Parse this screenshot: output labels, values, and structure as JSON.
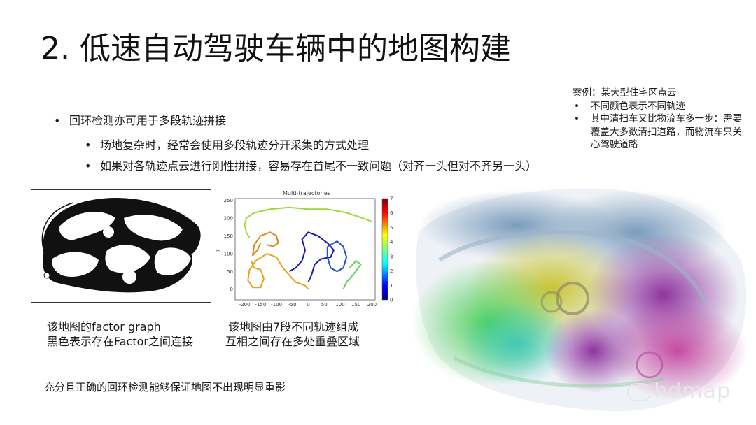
{
  "slide": {
    "title": "2. 低速自动驾驶车辆中的地图构建",
    "bullets": {
      "main": "回环检测亦可用于多段轨迹拼接",
      "sub1": "场地复杂时，经常会使用多段轨迹分开采集的方式处理",
      "sub2": "如果对各轨迹点云进行刚性拼接，容易存在首尾不一致问题（对齐一头但对不齐另一头）"
    },
    "case_note": {
      "title": "案例：某大型住宅区点云",
      "items": [
        "不同颜色表示不同轨迹",
        "其中清扫车又比物流车多一步：需要覆盖大多数清扫道路，而物流车只关心驾驶道路"
      ],
      "bullet": "•"
    },
    "captions": {
      "factor_line1": "该地图的factor graph",
      "factor_line2": "黑色表示存在Factor之间连接",
      "traj_line1": "该地图由7段不同轨迹组成",
      "traj_line2": "互相之间存在多处重叠区域",
      "conclusion": "充分且正确的回环检测能够保证地图不出现明显重影"
    },
    "watermark": "hdmap",
    "bullet_main": "•",
    "bullet_sub": "•"
  },
  "chart_data": {
    "type": "line",
    "title": "Multi-trajectories",
    "xlabel": "",
    "ylabel": "y",
    "xlim": [
      -230,
      210
    ],
    "ylim": [
      -30,
      255
    ],
    "xticks": [
      -200,
      -150,
      -100,
      -50,
      0,
      50,
      100,
      150,
      200
    ],
    "yticks": [
      0,
      50,
      100,
      150,
      200,
      250
    ],
    "colorbar": {
      "min": 0,
      "max": 7,
      "ticks": [
        0,
        1,
        2,
        3,
        4,
        5,
        6,
        7
      ],
      "colormap": "jet"
    },
    "series": [
      {
        "color": "#1b1ba8",
        "points": [
          [
            -60,
            50
          ],
          [
            -40,
            60
          ],
          [
            -20,
            80
          ],
          [
            -10,
            110
          ],
          [
            -20,
            140
          ],
          [
            0,
            160
          ],
          [
            30,
            150
          ],
          [
            60,
            130
          ],
          [
            80,
            110
          ],
          [
            70,
            90
          ],
          [
            40,
            85
          ],
          [
            20,
            70
          ],
          [
            10,
            40
          ],
          [
            0,
            20
          ]
        ]
      },
      {
        "color": "#1f4fd0",
        "points": [
          [
            60,
            120
          ],
          [
            90,
            135
          ],
          [
            110,
            120
          ],
          [
            120,
            90
          ],
          [
            110,
            60
          ],
          [
            90,
            50
          ],
          [
            70,
            60
          ],
          [
            60,
            90
          ],
          [
            60,
            120
          ]
        ]
      },
      {
        "color": "#e8a31c",
        "points": [
          [
            -180,
            80
          ],
          [
            -170,
            60
          ],
          [
            -150,
            55
          ],
          [
            -140,
            30
          ],
          [
            -150,
            5
          ],
          [
            -175,
            5
          ],
          [
            -190,
            25
          ],
          [
            -185,
            55
          ],
          [
            -165,
            80
          ],
          [
            -130,
            100
          ],
          [
            -100,
            90
          ],
          [
            -80,
            60
          ],
          [
            -60,
            40
          ],
          [
            -40,
            20
          ],
          [
            -10,
            10
          ],
          [
            0,
            0
          ]
        ]
      },
      {
        "color": "#d88a1e",
        "points": [
          [
            -150,
            130
          ],
          [
            -160,
            110
          ],
          [
            -175,
            95
          ],
          [
            -170,
            125
          ],
          [
            -150,
            150
          ],
          [
            -120,
            160
          ],
          [
            -100,
            150
          ],
          [
            -95,
            130
          ],
          [
            -110,
            120
          ],
          [
            -130,
            125
          ]
        ]
      },
      {
        "color": "#9ad93c",
        "points": [
          [
            -195,
            200
          ],
          [
            -170,
            215
          ],
          [
            -120,
            225
          ],
          [
            -60,
            230
          ],
          [
            0,
            225
          ],
          [
            60,
            225
          ],
          [
            120,
            215
          ],
          [
            170,
            200
          ],
          [
            200,
            190
          ]
        ]
      },
      {
        "color": "#a7dc3f",
        "points": [
          [
            -195,
            200
          ],
          [
            -200,
            180
          ],
          [
            -195,
            160
          ],
          [
            -185,
            145
          ]
        ]
      },
      {
        "color": "#5ed163",
        "points": [
          [
            130,
            60
          ],
          [
            150,
            80
          ],
          [
            165,
            70
          ],
          [
            140,
            40
          ],
          [
            120,
            20
          ],
          [
            110,
            0
          ]
        ]
      }
    ]
  }
}
